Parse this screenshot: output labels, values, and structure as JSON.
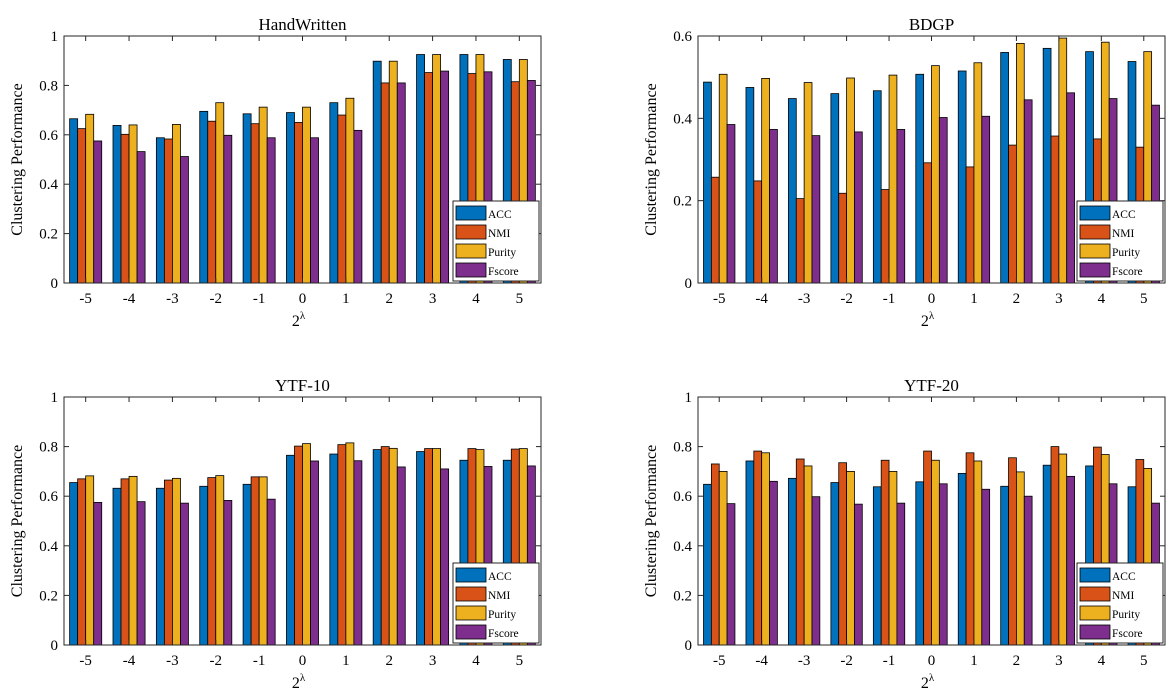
{
  "colors": {
    "ACC": "#0072BD",
    "NMI": "#D95319",
    "Purity": "#EDB120",
    "Fscore": "#7E2F8E"
  },
  "chart_data": [
    {
      "type": "bar",
      "title": "HandWritten",
      "xlabel_base": "2",
      "xlabel_exp": "λ",
      "ylabel": "Clustering Performance",
      "categories": [
        "-5",
        "-4",
        "-3",
        "-2",
        "-1",
        "0",
        "1",
        "2",
        "3",
        "4",
        "5"
      ],
      "ylim": [
        0,
        1
      ],
      "yticks": [
        "0",
        "0.2",
        "0.4",
        "0.6",
        "0.8",
        "1"
      ],
      "legend_position": "bottom-right",
      "series": [
        {
          "name": "ACC",
          "values": [
            0.665,
            0.638,
            0.588,
            0.695,
            0.685,
            0.69,
            0.73,
            0.898,
            0.925,
            0.925,
            0.905
          ]
        },
        {
          "name": "NMI",
          "values": [
            0.625,
            0.602,
            0.583,
            0.655,
            0.645,
            0.65,
            0.68,
            0.81,
            0.852,
            0.848,
            0.815
          ]
        },
        {
          "name": "Purity",
          "values": [
            0.683,
            0.64,
            0.642,
            0.73,
            0.712,
            0.712,
            0.748,
            0.898,
            0.925,
            0.925,
            0.905
          ]
        },
        {
          "name": "Fscore",
          "values": [
            0.575,
            0.532,
            0.512,
            0.598,
            0.588,
            0.588,
            0.618,
            0.81,
            0.858,
            0.855,
            0.82
          ]
        }
      ]
    },
    {
      "type": "bar",
      "title": "BDGP",
      "xlabel_base": "2",
      "xlabel_exp": "λ",
      "ylabel": "Clustering Performance",
      "categories": [
        "-5",
        "-4",
        "-3",
        "-2",
        "-1",
        "0",
        "1",
        "2",
        "3",
        "4",
        "5"
      ],
      "ylim": [
        0,
        0.6
      ],
      "yticks": [
        "0",
        "0.2",
        "0.4",
        "0.6"
      ],
      "legend_position": "bottom-right",
      "series": [
        {
          "name": "ACC",
          "values": [
            0.488,
            0.475,
            0.448,
            0.46,
            0.467,
            0.507,
            0.515,
            0.56,
            0.57,
            0.562,
            0.538
          ]
        },
        {
          "name": "NMI",
          "values": [
            0.257,
            0.248,
            0.205,
            0.218,
            0.227,
            0.292,
            0.282,
            0.335,
            0.357,
            0.35,
            0.33
          ]
        },
        {
          "name": "Purity",
          "values": [
            0.507,
            0.497,
            0.487,
            0.498,
            0.505,
            0.528,
            0.535,
            0.582,
            0.595,
            0.585,
            0.562
          ]
        },
        {
          "name": "Fscore",
          "values": [
            0.385,
            0.373,
            0.358,
            0.367,
            0.373,
            0.402,
            0.405,
            0.445,
            0.462,
            0.448,
            0.432
          ]
        }
      ]
    },
    {
      "type": "bar",
      "title": "YTF-10",
      "xlabel_base": "2",
      "xlabel_exp": "λ",
      "ylabel": "Clustering Performance",
      "categories": [
        "-5",
        "-4",
        "-3",
        "-2",
        "-1",
        "0",
        "1",
        "2",
        "3",
        "4",
        "5"
      ],
      "ylim": [
        0,
        1
      ],
      "yticks": [
        "0",
        "0.2",
        "0.4",
        "0.6",
        "0.8",
        "1"
      ],
      "legend_position": "bottom-right",
      "series": [
        {
          "name": "ACC",
          "values": [
            0.655,
            0.632,
            0.632,
            0.64,
            0.648,
            0.765,
            0.77,
            0.788,
            0.78,
            0.745,
            0.745
          ]
        },
        {
          "name": "NMI",
          "values": [
            0.67,
            0.67,
            0.665,
            0.675,
            0.678,
            0.802,
            0.808,
            0.8,
            0.792,
            0.792,
            0.79
          ]
        },
        {
          "name": "Purity",
          "values": [
            0.682,
            0.68,
            0.672,
            0.683,
            0.678,
            0.812,
            0.815,
            0.793,
            0.792,
            0.788,
            0.792
          ]
        },
        {
          "name": "Fscore",
          "values": [
            0.575,
            0.578,
            0.572,
            0.583,
            0.588,
            0.742,
            0.743,
            0.718,
            0.71,
            0.72,
            0.722
          ]
        }
      ]
    },
    {
      "type": "bar",
      "title": "YTF-20",
      "xlabel_base": "2",
      "xlabel_exp": "λ",
      "ylabel": "Clustering Performance",
      "categories": [
        "-5",
        "-4",
        "-3",
        "-2",
        "-1",
        "0",
        "1",
        "2",
        "3",
        "4",
        "5"
      ],
      "ylim": [
        0,
        1
      ],
      "yticks": [
        "0",
        "0.2",
        "0.4",
        "0.6",
        "0.8",
        "1"
      ],
      "legend_position": "bottom-right",
      "series": [
        {
          "name": "ACC",
          "values": [
            0.648,
            0.742,
            0.672,
            0.655,
            0.638,
            0.658,
            0.692,
            0.64,
            0.725,
            0.722,
            0.638
          ]
        },
        {
          "name": "NMI",
          "values": [
            0.73,
            0.782,
            0.75,
            0.735,
            0.745,
            0.782,
            0.775,
            0.755,
            0.8,
            0.798,
            0.748
          ]
        },
        {
          "name": "Purity",
          "values": [
            0.7,
            0.775,
            0.722,
            0.7,
            0.7,
            0.745,
            0.742,
            0.698,
            0.77,
            0.768,
            0.712
          ]
        },
        {
          "name": "Fscore",
          "values": [
            0.57,
            0.66,
            0.598,
            0.568,
            0.572,
            0.65,
            0.628,
            0.6,
            0.68,
            0.65,
            0.572
          ]
        }
      ]
    }
  ]
}
